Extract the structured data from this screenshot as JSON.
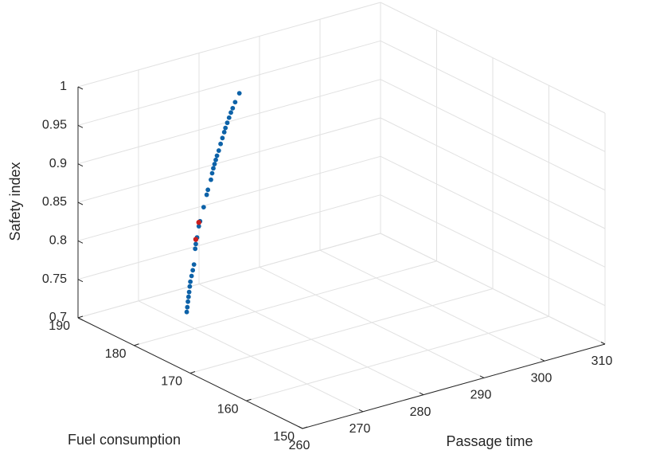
{
  "chart_data": {
    "type": "scatter3d",
    "x_axis": {
      "label": "Passage time",
      "range": [
        260,
        310
      ],
      "ticks": [
        "260",
        "270",
        "280",
        "290",
        "300",
        "310"
      ]
    },
    "y_axis": {
      "label": "Fuel consumption",
      "range": [
        150,
        190
      ],
      "ticks": [
        "150",
        "160",
        "170",
        "180",
        "190"
      ]
    },
    "z_axis": {
      "label": "Safety index",
      "range": [
        0.7,
        1.0
      ],
      "ticks": [
        "0.7",
        "0.75",
        "0.8",
        "0.85",
        "0.9",
        "0.95",
        "1"
      ]
    },
    "grid": true,
    "colors": {
      "points": "#0d62a8",
      "highlight": "#c81e1e"
    },
    "series": [
      {
        "color": "#0d62a8",
        "points": [
          [
            268.6,
            179.9,
            0.725
          ],
          [
            268.7,
            179.9,
            0.731
          ],
          [
            268.8,
            179.9,
            0.738
          ],
          [
            268.9,
            179.9,
            0.744
          ],
          [
            269.0,
            179.9,
            0.75
          ],
          [
            269.1,
            179.9,
            0.757
          ],
          [
            269.2,
            179.9,
            0.763
          ],
          [
            269.4,
            179.9,
            0.77
          ],
          [
            269.6,
            179.9,
            0.777
          ],
          [
            269.8,
            179.9,
            0.784
          ],
          [
            270.0,
            179.9,
            0.804
          ],
          [
            270.1,
            179.9,
            0.81
          ],
          [
            270.3,
            179.9,
            0.818
          ],
          [
            270.6,
            179.9,
            0.832
          ],
          [
            270.8,
            179.9,
            0.838
          ],
          [
            271.4,
            179.9,
            0.855
          ],
          [
            271.9,
            179.9,
            0.87
          ],
          [
            272.1,
            179.9,
            0.876
          ],
          [
            272.6,
            179.9,
            0.888
          ],
          [
            272.8,
            179.9,
            0.896
          ],
          [
            273.0,
            179.9,
            0.902
          ],
          [
            273.2,
            179.9,
            0.907
          ],
          [
            273.4,
            179.9,
            0.912
          ],
          [
            273.6,
            179.9,
            0.917
          ],
          [
            273.9,
            179.9,
            0.923
          ],
          [
            274.2,
            179.9,
            0.931
          ],
          [
            274.5,
            179.9,
            0.938
          ],
          [
            274.8,
            179.9,
            0.945
          ],
          [
            275.0,
            179.9,
            0.95
          ],
          [
            275.3,
            179.9,
            0.956
          ],
          [
            275.6,
            179.9,
            0.962
          ],
          [
            275.9,
            179.9,
            0.968
          ],
          [
            276.2,
            179.9,
            0.973
          ],
          [
            276.6,
            179.9,
            0.98
          ],
          [
            277.3,
            179.9,
            0.99
          ]
        ]
      },
      {
        "color": "#c81e1e",
        "points": [
          [
            270.1,
            179.9,
            0.816
          ],
          [
            270.6,
            179.9,
            0.837
          ]
        ]
      }
    ]
  }
}
